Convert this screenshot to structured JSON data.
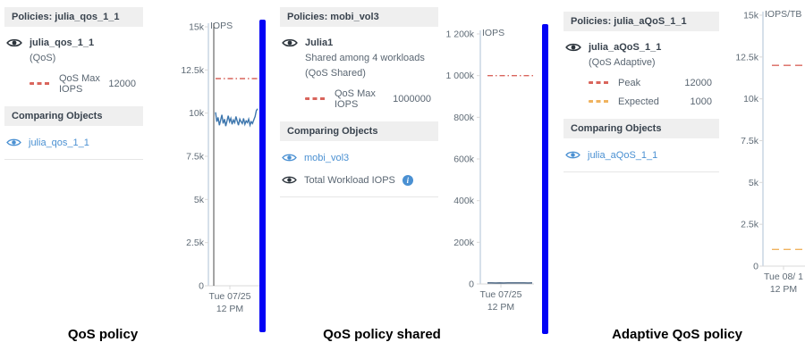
{
  "colors": {
    "divider_blue": "#0202f5",
    "qos_max_red": "#d9655c",
    "expected_orange": "#f0b35f",
    "link_blue": "#4a90d2",
    "series_blue": "#3d76ad",
    "series_navy": "#3b5878",
    "header_band_gray": "#efefef"
  },
  "icons": {
    "info_glyph": "i"
  },
  "panels": [
    {
      "header": "Policies: julia_qos_1_1",
      "object_name": "julia_qos_1_1",
      "subtitle_lines": [
        "(QoS)"
      ],
      "legend": [
        {
          "label": "QoS Max IOPS",
          "value": "12000",
          "color": "#d9655c"
        }
      ],
      "comparing_header": "Comparing Objects",
      "comparing": [
        {
          "label": "julia_qos_1_1"
        }
      ],
      "caption": "QoS policy"
    },
    {
      "header": "Policies: mobi_vol3",
      "object_name": "Julia1",
      "subtitle_lines": [
        "Shared among 4 workloads",
        "(QoS Shared)"
      ],
      "legend": [
        {
          "label": "QoS Max IOPS",
          "value": "1000000",
          "color": "#d9655c"
        }
      ],
      "comparing_header": "Comparing Objects",
      "comparing": [
        {
          "label": "mobi_vol3"
        },
        {
          "label": "Total Workload IOPS"
        }
      ],
      "caption": "QoS policy shared"
    },
    {
      "header": "Policies: julia_aQoS_1_1",
      "object_name": "julia_aQoS_1_1",
      "subtitle_lines": [
        "(QoS Adaptive)"
      ],
      "legend": [
        {
          "label": "Peak",
          "value": "12000",
          "color": "#d9655c"
        },
        {
          "label": "Expected",
          "value": "1000",
          "color": "#f0b35f"
        }
      ],
      "comparing_header": "Comparing Objects",
      "comparing": [
        {
          "label": "julia_aQoS_1_1"
        }
      ],
      "caption": "Adaptive QoS policy"
    }
  ],
  "chart_data": [
    {
      "type": "line",
      "ylabel": "IOPS",
      "ylim": [
        0,
        15000
      ],
      "yticks": [
        {
          "v": 15000,
          "label": "15k"
        },
        {
          "v": 12500,
          "label": "12.5k"
        },
        {
          "v": 10000,
          "label": "10k"
        },
        {
          "v": 7500,
          "label": "7.5k"
        },
        {
          "v": 5000,
          "label": "5k"
        },
        {
          "v": 2500,
          "label": "2.5k"
        },
        {
          "v": 0,
          "label": "0"
        }
      ],
      "xticks": [
        "Tue 07/25",
        "12 PM"
      ],
      "cursor_line": true,
      "ref_lines": [
        {
          "name": "QoS Max IOPS",
          "value": 12000,
          "color": "#d9655c",
          "dash": "6 3 1.5 3"
        }
      ],
      "series": [
        {
          "name": "julia_qos_1_1",
          "color": "#3d76ad",
          "values": [
            10050,
            9500,
            9750,
            9300,
            9600,
            9900,
            9400,
            9650,
            9250,
            9550,
            9850,
            9500,
            9700,
            9350,
            9600,
            9450,
            9800,
            9550,
            9300,
            9650,
            9500,
            9400,
            9700,
            9350,
            9550,
            9450,
            9650,
            9300,
            9500,
            9400,
            9600,
            9800,
            10150,
            10250
          ]
        }
      ]
    },
    {
      "type": "line",
      "ylabel": "IOPS",
      "ylim": [
        0,
        1200000
      ],
      "yticks": [
        {
          "v": 1200000,
          "label": "1 200k"
        },
        {
          "v": 1000000,
          "label": "1 000k"
        },
        {
          "v": 800000,
          "label": "800k"
        },
        {
          "v": 600000,
          "label": "600k"
        },
        {
          "v": 400000,
          "label": "400k"
        },
        {
          "v": 200000,
          "label": "200k"
        },
        {
          "v": 0,
          "label": "0"
        }
      ],
      "xticks": [
        "Tue 07/25",
        "12 PM"
      ],
      "cursor_line": false,
      "ref_lines": [
        {
          "name": "QoS Max IOPS",
          "value": 1000000,
          "color": "#d9655c",
          "dash": "6 3 1.5 3"
        }
      ],
      "series": [
        {
          "name": "Total Workload IOPS",
          "color": "#3b5878",
          "values": [
            5000,
            5200,
            4800,
            5100,
            4900,
            5000,
            5100,
            4950,
            5050,
            5000,
            4900,
            5100
          ]
        }
      ]
    },
    {
      "type": "line",
      "ylabel": "IOPS/TB",
      "ylim": [
        0,
        15000
      ],
      "yticks": [
        {
          "v": 15000,
          "label": "15k"
        },
        {
          "v": 12500,
          "label": "12.5k"
        },
        {
          "v": 10000,
          "label": "10k"
        },
        {
          "v": 7500,
          "label": "7.5k"
        },
        {
          "v": 5000,
          "label": "5k"
        },
        {
          "v": 2500,
          "label": "2.5k"
        },
        {
          "v": 0,
          "label": "0"
        }
      ],
      "xticks": [
        "Tue 08/ 1",
        "12 PM"
      ],
      "cursor_line": false,
      "ref_lines": [
        {
          "name": "Peak",
          "value": 12000,
          "color": "#d9655c",
          "dash": "8 5"
        },
        {
          "name": "Expected",
          "value": 1000,
          "color": "#f0b35f",
          "dash": "8 5"
        }
      ],
      "series": []
    }
  ]
}
